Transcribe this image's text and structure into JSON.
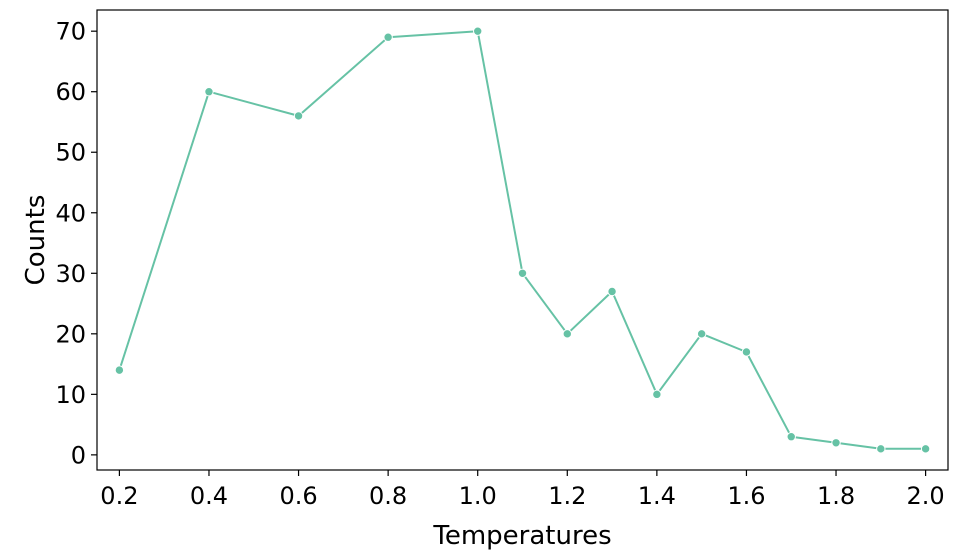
{
  "chart_data": {
    "type": "line",
    "title": "",
    "xlabel": "Temperatures",
    "ylabel": "Counts",
    "x": [
      0.2,
      0.4,
      0.6,
      0.8,
      1.0,
      1.1,
      1.2,
      1.3,
      1.4,
      1.5,
      1.6,
      1.7,
      1.8,
      1.9,
      2.0
    ],
    "series": [
      {
        "values": [
          14,
          60,
          56,
          69,
          70,
          30,
          20,
          27,
          10,
          20,
          17,
          3,
          2,
          1,
          1
        ],
        "color": "#66c2a5",
        "marker": "circle"
      }
    ],
    "xlim": [
      0.15,
      2.05
    ],
    "ylim": [
      -2.5,
      73.5
    ],
    "xticks": [
      "0.2",
      "0.4",
      "0.6",
      "0.8",
      "1.0",
      "1.2",
      "1.4",
      "1.6",
      "1.8",
      "2.0"
    ],
    "yticks": [
      "0",
      "10",
      "20",
      "30",
      "40",
      "50",
      "60",
      "70"
    ],
    "grid": false,
    "legend": "none"
  }
}
